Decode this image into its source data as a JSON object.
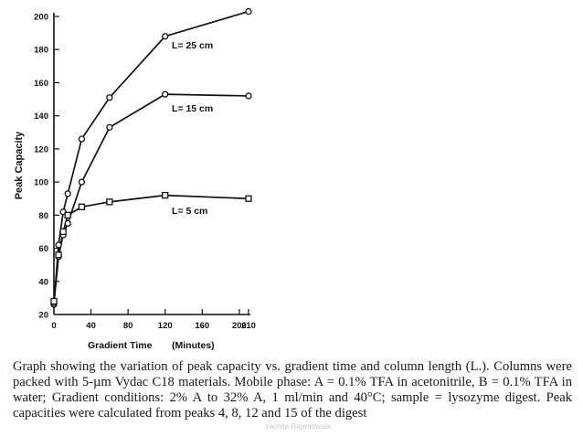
{
  "chart_data": {
    "type": "line",
    "xlabel": "Gradient Time",
    "xunit": "(Minutes)",
    "ylabel": "Peak Capacity",
    "xlim": [
      0,
      210
    ],
    "ylim": [
      20,
      200
    ],
    "xticks": [
      0,
      40,
      80,
      120,
      160,
      200,
      210
    ],
    "yticks": [
      20,
      40,
      60,
      80,
      100,
      120,
      140,
      160,
      180,
      200
    ],
    "series": [
      {
        "name": "L= 25 cm",
        "marker": "circle",
        "x": [
          0,
          5,
          10,
          15,
          30,
          60,
          120,
          210
        ],
        "y": [
          26,
          62,
          82,
          93,
          126,
          151,
          188,
          203
        ]
      },
      {
        "name": "L= 15 cm",
        "marker": "circle",
        "x": [
          0,
          5,
          10,
          15,
          30,
          60,
          120,
          210
        ],
        "y": [
          27,
          55,
          68,
          75,
          100,
          133,
          153,
          152
        ]
      },
      {
        "name": "L= 5 cm",
        "marker": "square",
        "x": [
          0,
          5,
          10,
          15,
          30,
          60,
          120,
          210
        ],
        "y": [
          28,
          56,
          70,
          80,
          85,
          88,
          92,
          90
        ]
      }
    ]
  },
  "caption": {
    "text": "Graph showing the variation of peak capacity vs. gradient time and column length (L.). Columns were packed with 5-µm Vydac C18 materials. Mobile phase: A = 0.1% TFA in acetonitrile, B = 0.1% TFA in water; Gradient conditions: 2% A to 32% A, 1 ml/min and 40°C; sample = lysozyme digest. Peak capacities were calculated from peaks 4, 8, 12 and 15 of the digest"
  },
  "watermark": "Yachita Rajwadwala"
}
